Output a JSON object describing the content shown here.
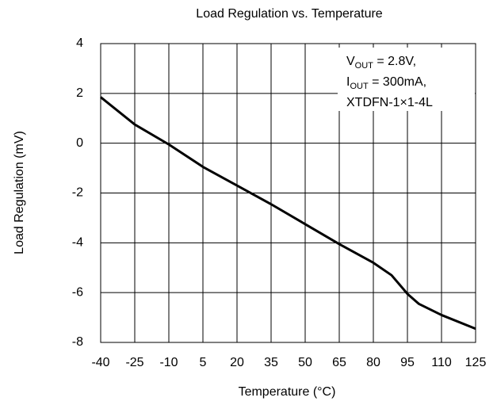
{
  "chart_data": {
    "type": "line",
    "title": "Load Regulation vs. Temperature",
    "x_label": "Temperature (°C)",
    "y_label": "Load Regulation (mV)",
    "x": [
      -40,
      -25,
      -10,
      5,
      20,
      35,
      50,
      65,
      80,
      88,
      95,
      100,
      110,
      125
    ],
    "values": [
      1.85,
      0.75,
      -0.05,
      -0.95,
      -1.7,
      -2.45,
      -3.25,
      -4.05,
      -4.8,
      -5.3,
      -6.05,
      -6.45,
      -6.9,
      -7.45
    ],
    "color": "#000000",
    "xlim": [
      -40,
      125
    ],
    "xticks": [
      -40,
      -25,
      -10,
      5,
      20,
      35,
      50,
      65,
      80,
      95,
      110,
      125
    ],
    "ylim": [
      -8,
      4
    ],
    "yticks": [
      -8,
      -6,
      -4,
      -2,
      0,
      2,
      4
    ],
    "grid": true,
    "annotation": [
      {
        "text": "V",
        "sub": "OUT",
        "after": " = 2.8V,"
      },
      {
        "text": "I",
        "sub": "OUT",
        "after": " = 300mA,"
      },
      {
        "text": "XTDFN-1×1-4L"
      }
    ]
  }
}
